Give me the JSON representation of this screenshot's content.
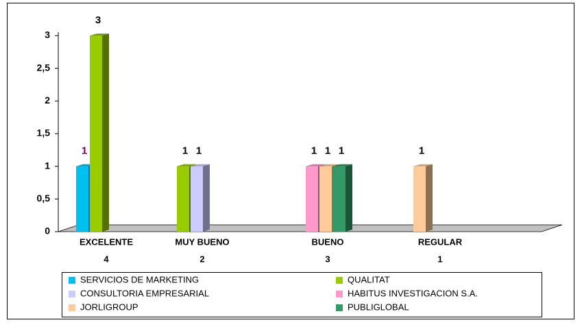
{
  "chart_data": {
    "type": "bar3d",
    "categories": [
      "EXCELENTE",
      "MUY BUENO",
      "BUENO",
      "REGULAR"
    ],
    "category_totals": [
      4,
      2,
      3,
      1
    ],
    "series": [
      {
        "name": "SERVICIOS DE MARKETING",
        "color": "#00c0f0",
        "label_color": "#660066",
        "values": [
          1,
          null,
          null,
          null
        ]
      },
      {
        "name": "QUALITAT",
        "color": "#99cc00",
        "label_color": "#000000",
        "values": [
          3,
          1,
          null,
          null
        ]
      },
      {
        "name": "CONSULTORIA EMPRESARIAL",
        "color": "#ccccff",
        "label_color": "#000000",
        "values": [
          null,
          1,
          null,
          null
        ]
      },
      {
        "name": "HABITUS INVESTIGACION S.A.",
        "color": "#ff99cc",
        "label_color": "#000000",
        "values": [
          null,
          null,
          1,
          null
        ]
      },
      {
        "name": "JORLIGROUP",
        "color": "#ffcc99",
        "label_color": "#000000",
        "values": [
          null,
          null,
          1,
          1
        ]
      },
      {
        "name": "PUBLIGLOBAL",
        "color": "#339966",
        "label_color": "#000000",
        "values": [
          null,
          null,
          1,
          null
        ]
      }
    ],
    "ylim": [
      0,
      3
    ],
    "yticks": [
      0,
      {
        "value": 0.5,
        "label": "0,5"
      },
      1,
      {
        "value": 1.5,
        "label": "1,5"
      },
      2,
      {
        "value": 2.5,
        "label": "2,5"
      },
      3
    ]
  }
}
